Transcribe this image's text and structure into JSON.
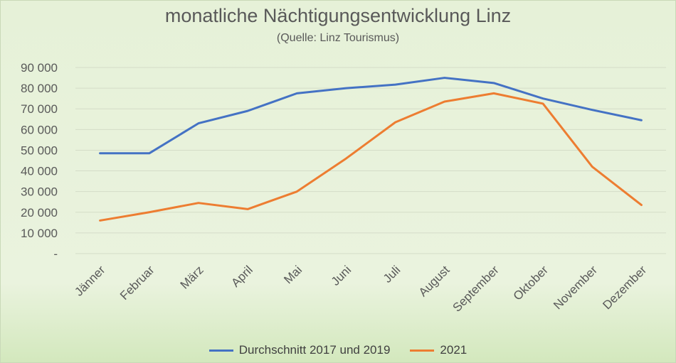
{
  "chart_data": {
    "type": "line",
    "title": "monatliche Nächtigungsentwicklung Linz",
    "subtitle": "(Quelle: Linz Tourismus)",
    "categories": [
      "Jänner",
      "Februar",
      "März",
      "April",
      "Mai",
      "Juni",
      "Juli",
      "August",
      "September",
      "Oktober",
      "November",
      "Dezember"
    ],
    "ylim": [
      0,
      90000
    ],
    "yticks": [
      0,
      10000,
      20000,
      30000,
      40000,
      50000,
      60000,
      70000,
      80000,
      90000
    ],
    "ytick_labels": [
      "-",
      "10 000",
      "20 000",
      "30 000",
      "40 000",
      "50 000",
      "60 000",
      "70 000",
      "80 000",
      "90 000"
    ],
    "grid": true,
    "legend_position": "bottom",
    "series": [
      {
        "name": "Durchschnitt 2017 und 2019",
        "color": "#4472c4",
        "values": [
          48500,
          48500,
          63000,
          69000,
          77500,
          80000,
          81700,
          85000,
          82500,
          75000,
          69500,
          64500
        ]
      },
      {
        "name": "2021",
        "color": "#ed7d31",
        "values": [
          16000,
          20000,
          24500,
          21500,
          30000,
          46000,
          63500,
          73500,
          77500,
          72500,
          42000,
          23500
        ]
      }
    ]
  }
}
